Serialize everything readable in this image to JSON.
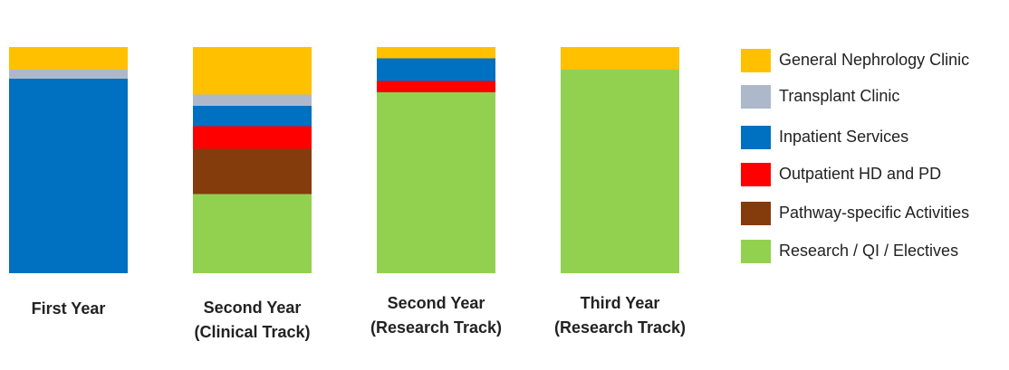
{
  "chart_data": {
    "type": "stacked_bar",
    "categories": [
      "First Year",
      "Second Year\n(Clinical Track)",
      "Second Year\n(Research Track)",
      "Third Year\n(Research Track)"
    ],
    "series": [
      {
        "name": "General Nephrology Clinic",
        "color": "#FFC000",
        "values": [
          10,
          21,
          5,
          10
        ]
      },
      {
        "name": "Transplant Clinic",
        "color": "#ADB9CA",
        "values": [
          4,
          5,
          0,
          0
        ]
      },
      {
        "name": "Inpatient Services",
        "color": "#0070C0",
        "values": [
          86,
          9,
          10,
          0
        ]
      },
      {
        "name": "Outpatient HD and PD",
        "color": "#FF0000",
        "values": [
          0,
          10,
          5,
          0
        ]
      },
      {
        "name": "Pathway-specific Activities",
        "color": "#843C0C",
        "values": [
          0,
          20,
          0,
          0
        ]
      },
      {
        "name": "Research / QI / Electives",
        "color": "#92D050",
        "values": [
          0,
          35,
          80,
          90
        ]
      }
    ]
  }
}
